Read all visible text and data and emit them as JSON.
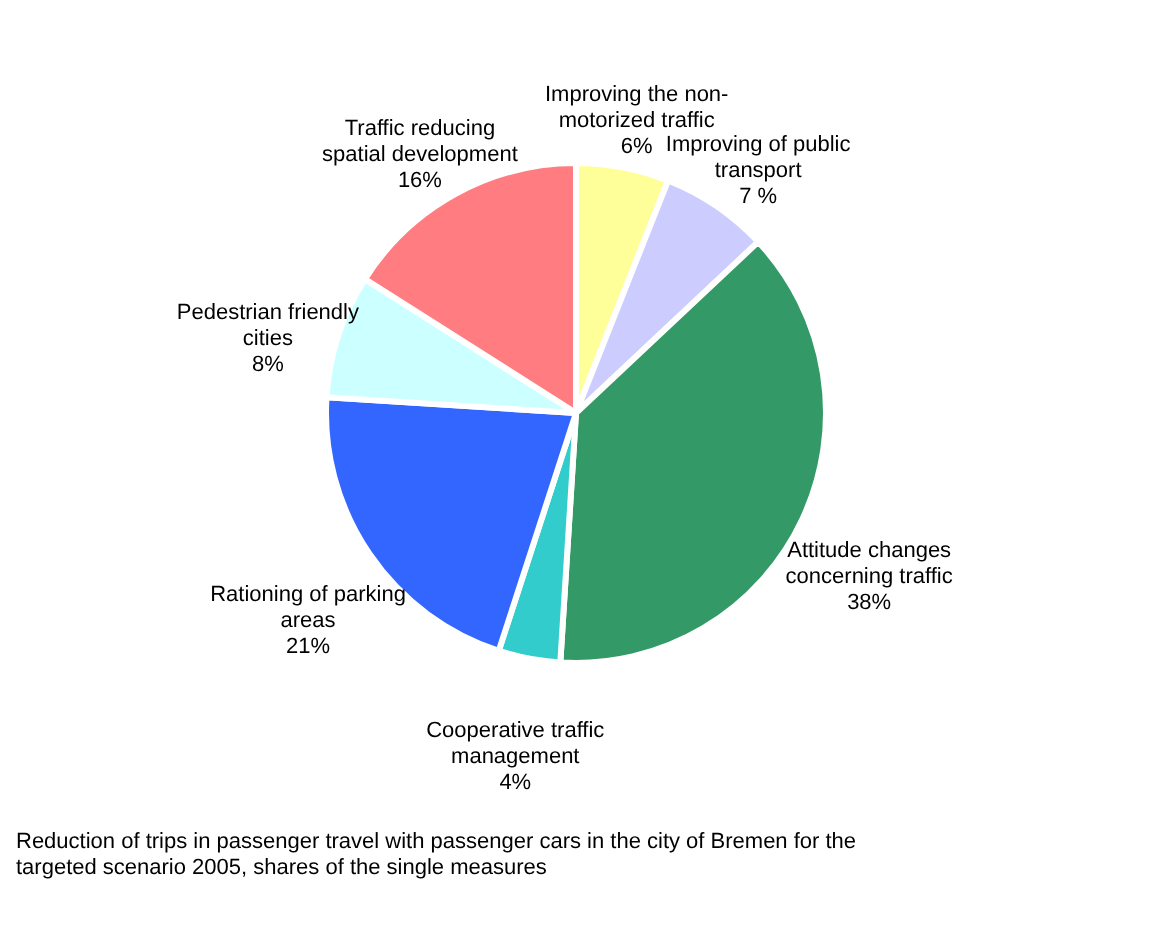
{
  "chart_data": {
    "type": "pie",
    "categories": [
      "Improving the non-motorized traffic",
      "Improving of public transport",
      "Attitude changes concerning traffic",
      "Cooperative traffic management",
      "Rationing of parking areas",
      "Pedestrian friendly cities",
      "Traffic reducing spatial development"
    ],
    "values": [
      6,
      7,
      38,
      4,
      21,
      8,
      16
    ],
    "value_labels": [
      "6%",
      "7 %",
      "38%",
      "4%",
      "21%",
      "8%",
      "16%"
    ],
    "colors": [
      "#ffff99",
      "#ccccff",
      "#339966",
      "#33cccc",
      "#3366ff",
      "#ccffff",
      "#ff7c80"
    ],
    "legend": false,
    "annotations": [
      "Reduction of trips in passenger travel with passenger cars in the city of Bremen for the targeted scenario 2005, shares of the single measures"
    ]
  }
}
